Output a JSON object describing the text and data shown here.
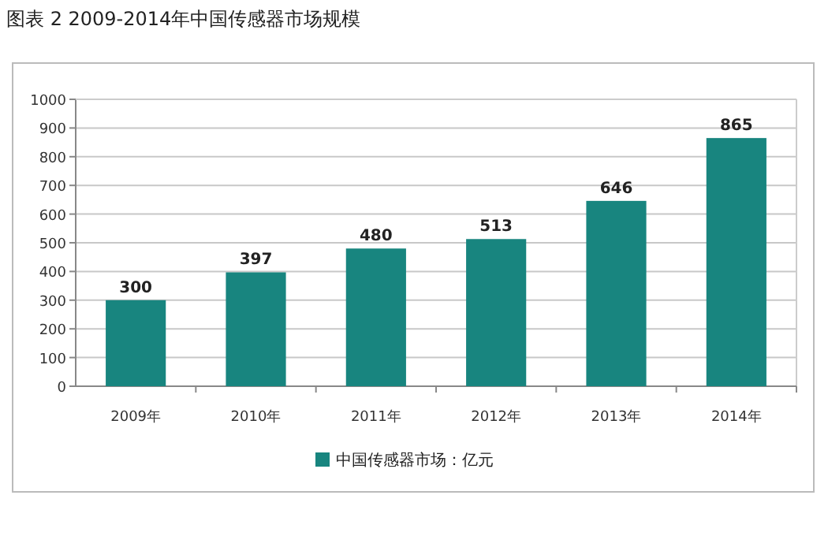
{
  "chart_data": {
    "type": "bar",
    "title": "图表 2   2009-2014年中国传感器市场规模",
    "categories": [
      "2009年",
      "2010年",
      "2011年",
      "2012年",
      "2013年",
      "2014年"
    ],
    "series": [
      {
        "name": "中国传感器市场：亿元",
        "color": "#18857f",
        "values": [
          300,
          397,
          480,
          513,
          646,
          865
        ]
      }
    ],
    "ylim": [
      0,
      1000
    ],
    "yticks": [
      0,
      100,
      200,
      300,
      400,
      500,
      600,
      700,
      800,
      900,
      1000
    ],
    "grid": "y",
    "legend": "bottom",
    "data_labels": true
  }
}
